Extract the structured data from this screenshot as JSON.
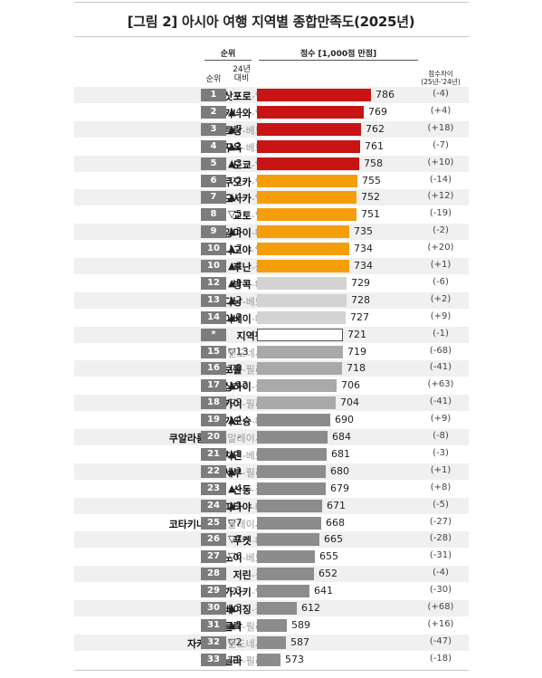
{
  "title": "[그림 2] 아시아 여행 지역별 종합만족도(2025년)",
  "headers": {
    "rank_group": "순위",
    "rank": "순위",
    "change": "24년\n대비",
    "score": "점수 [1,000점 만점]",
    "diff": "점수차이\n(25년-'24년)"
  },
  "colors": {
    "top": "#c81414",
    "upper": "#f59e0b",
    "middle": "#d3d3d3",
    "lower": "#a9a9a9",
    "bottom": "#8c8c8c",
    "average": "#ffffff",
    "rank_box": "#7c7c7c"
  },
  "chart_data": {
    "type": "bar",
    "orientation": "horizontal",
    "title": "[그림 2] 아시아 여행 지역별 종합만족도(2025년)",
    "xlim": [
      0,
      1000
    ],
    "legend": null,
    "grid": false,
    "rows": [
      {
        "city": "삿포로",
        "country": "-일본",
        "rank": "1",
        "change": "-",
        "score": 786,
        "diff": "(-4)",
        "tier": "top"
      },
      {
        "city": "오키나와",
        "country": "-일본",
        "rank": "2",
        "change": "▲4",
        "score": 769,
        "diff": "(+4)",
        "tier": "top"
      },
      {
        "city": "나트랑",
        "country": "-베트남",
        "rank": "3",
        "change": "▲7",
        "score": 762,
        "diff": "(+18)",
        "tier": "top"
      },
      {
        "city": "푸꾸옥",
        "country": "-베트남",
        "rank": "4",
        "change": "▲1",
        "score": 761,
        "diff": "(-7)",
        "tier": "top"
      },
      {
        "city": "도쿄",
        "country": "-일본",
        "rank": "5",
        "change": "▲3",
        "score": 758,
        "diff": "(+10)",
        "tier": "top"
      },
      {
        "city": "후쿠오카",
        "country": "-일본",
        "rank": "6",
        "change": "▽2",
        "score": 755,
        "diff": "(-14)",
        "tier": "upper"
      },
      {
        "city": "오사카",
        "country": "-일본",
        "rank": "7",
        "change": "▲4",
        "score": 752,
        "diff": "(+12)",
        "tier": "upper"
      },
      {
        "city": "교토",
        "country": "-일본",
        "rank": "8",
        "change": "▽5",
        "score": 751,
        "diff": "(-19)",
        "tier": "upper"
      },
      {
        "city": "치앙마이",
        "country": "-태국",
        "rank": "9",
        "change": "▲3",
        "score": 735,
        "diff": "(-2)",
        "tier": "upper"
      },
      {
        "city": "나고야",
        "country": "-일본",
        "rank": "10",
        "change": "▲7",
        "score": 734,
        "diff": "(+20)",
        "tier": "upper"
      },
      {
        "city": "후난",
        "country": "-중국",
        "rank": "10",
        "change": "▲4",
        "score": 734,
        "diff": "(+1)",
        "tier": "upper"
      },
      {
        "city": "방콕",
        "country": "-태국",
        "rank": "12",
        "change": "▲1",
        "score": 729,
        "diff": "(-6)",
        "tier": "middle"
      },
      {
        "city": "다낭",
        "country": "-베트남",
        "rank": "13",
        "change": "▲2",
        "score": 728,
        "diff": "(+2)",
        "tier": "middle"
      },
      {
        "city": "타이베이",
        "country": "-대만",
        "rank": "14",
        "change": "▲2",
        "score": 727,
        "diff": "(+9)",
        "tier": "middle"
      },
      {
        "city": "지역평균",
        "country": "",
        "rank": "*",
        "change": "-",
        "score": 721,
        "diff": "(-1)",
        "tier": "average"
      },
      {
        "city": "발리",
        "country": "-인도네시아",
        "rank": "15",
        "change": "▽13",
        "score": 719,
        "diff": "(-68)",
        "tier": "lower"
      },
      {
        "city": "보홀",
        "country": "-필리핀",
        "rank": "16",
        "change": "▽9",
        "score": 718,
        "diff": "(-41)",
        "tier": "lower"
      },
      {
        "city": "상하이",
        "country": "-중국",
        "rank": "17",
        "change": "▲12",
        "score": 706,
        "diff": "(+63)",
        "tier": "lower"
      },
      {
        "city": "보라카이",
        "country": "-필리핀",
        "rank": "18",
        "change": "▽9",
        "score": 704,
        "diff": "(-41)",
        "tier": "lower"
      },
      {
        "city": "가오슝",
        "country": "-대만",
        "rank": "19",
        "change": "▲4",
        "score": 690,
        "diff": "(+9)",
        "tier": "bottom"
      },
      {
        "city": "쿠알라룸프르",
        "country": "-말레이시아",
        "rank": "20",
        "change": "-",
        "score": 684,
        "diff": "(-8)",
        "tier": "bottom"
      },
      {
        "city": "호치민",
        "country": "-베트남",
        "rank": "21",
        "change": "▲1",
        "score": 681,
        "diff": "(-3)",
        "tier": "bottom"
      },
      {
        "city": "세부",
        "country": "-필리핀",
        "rank": "22",
        "change": "▲1",
        "score": 680,
        "diff": "(+1)",
        "tier": "bottom"
      },
      {
        "city": "산동",
        "country": "-중국",
        "rank": "23",
        "change": "▲4",
        "score": 679,
        "diff": "(+8)",
        "tier": "bottom"
      },
      {
        "city": "파타야",
        "country": "-태국",
        "rank": "24",
        "change": "▲1",
        "score": 671,
        "diff": "(-5)",
        "tier": "bottom"
      },
      {
        "city": "코타키나발루",
        "country": "-말레이시아",
        "rank": "25",
        "change": "▽7",
        "score": 668,
        "diff": "(-27)",
        "tier": "bottom"
      },
      {
        "city": "푸켓",
        "country": "-태국",
        "rank": "26",
        "change": "▽7",
        "score": 665,
        "diff": "(-28)",
        "tier": "bottom"
      },
      {
        "city": "하노이",
        "country": "-베트남",
        "rank": "27",
        "change": "▽6",
        "score": 655,
        "diff": "(-31)",
        "tier": "bottom"
      },
      {
        "city": "지린",
        "country": "-중국",
        "rank": "28",
        "change": "-",
        "score": 652,
        "diff": "(-4)",
        "tier": "bottom"
      },
      {
        "city": "나가사키",
        "country": "-일본",
        "rank": "29",
        "change": "▽3",
        "score": 641,
        "diff": "(-30)",
        "tier": "bottom"
      },
      {
        "city": "베이징",
        "country": "-중국",
        "rank": "30",
        "change": "▲3",
        "score": 612,
        "diff": "(+68)",
        "tier": "bottom"
      },
      {
        "city": "클락",
        "country": "-필리핀",
        "rank": "31",
        "change": "▲1",
        "score": 589,
        "diff": "(+16)",
        "tier": "bottom"
      },
      {
        "city": "자카르타",
        "country": "-인도네시아",
        "rank": "32",
        "change": "▽2",
        "score": 587,
        "diff": "(-47)",
        "tier": "bottom"
      },
      {
        "city": "마닐라",
        "country": "-필리핀",
        "rank": "33",
        "change": "▽2",
        "score": 573,
        "diff": "(-18)",
        "tier": "bottom"
      }
    ]
  }
}
